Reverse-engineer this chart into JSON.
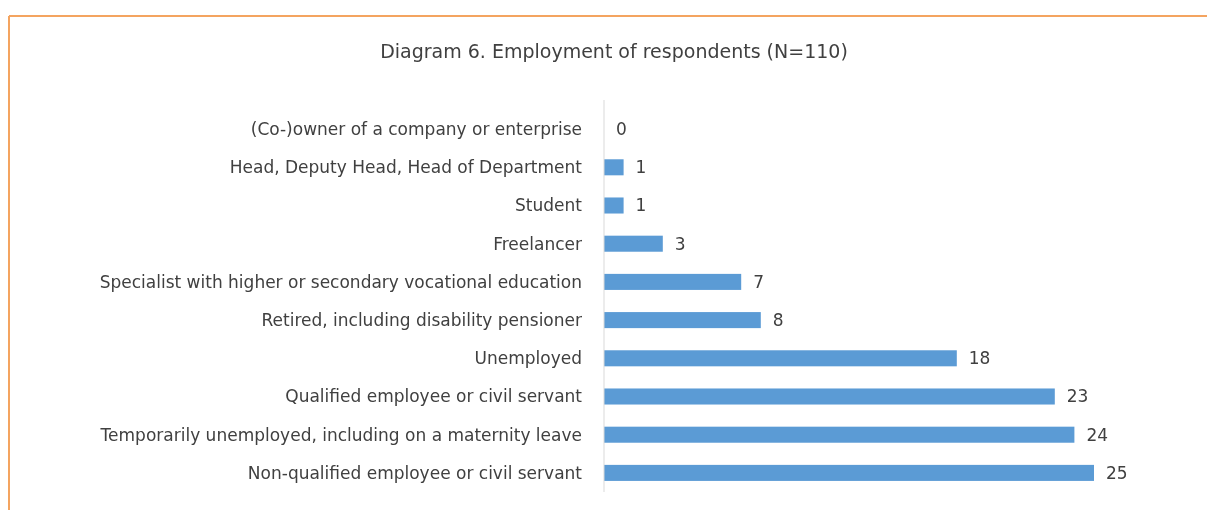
{
  "chart_data": {
    "type": "bar",
    "orientation": "horizontal",
    "title": "Diagram 6. Employment of respondents (N=110)",
    "categories": [
      "(Co-)owner of a company or enterprise",
      "Head, Deputy Head, Head of Department",
      "Student",
      "Freelancer",
      "Specialist with higher or secondary vocational education",
      "Retired, including disability pensioner",
      "Unemployed",
      "Qualified employee or civil servant",
      "Temporarily unemployed, including on a maternity leave",
      "Non-qualified employee or civil servant"
    ],
    "values": [
      0,
      1,
      1,
      3,
      7,
      8,
      18,
      23,
      24,
      25
    ],
    "color": "#5b9bd5",
    "data_labels": true
  }
}
